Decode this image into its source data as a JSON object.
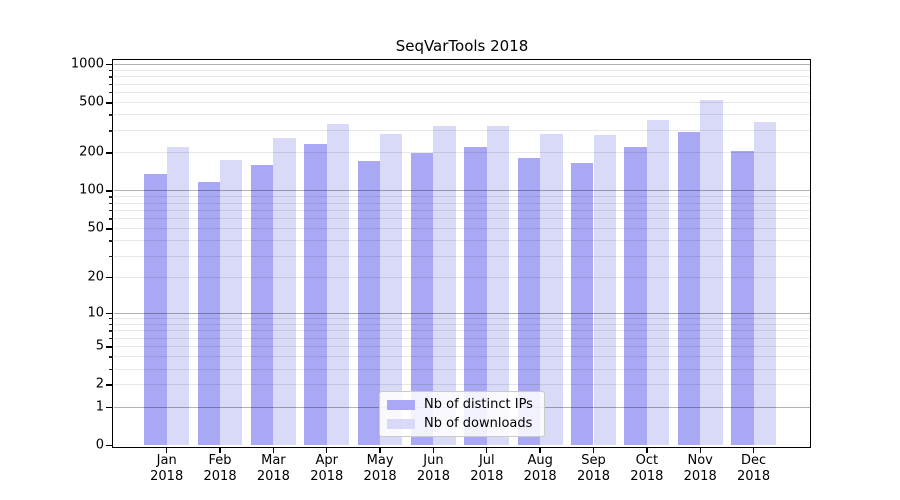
{
  "legend": {
    "items": [
      {
        "label": "Nb of distinct IPs",
        "series": "ips"
      },
      {
        "label": "Nb of downloads",
        "series": "downloads"
      }
    ]
  },
  "colors": {
    "ips_bar": "#a8a8f4",
    "downloads_bar": "#d9d9f8",
    "major_gridline": "#ababab",
    "minor_gridline": "#e8e8e8",
    "axis": "#000000",
    "legend_border": "#cbcbcb"
  },
  "chart_data": {
    "type": "bar",
    "title": "SeqVarTools 2018",
    "categories": [
      "Jan 2018",
      "Feb 2018",
      "Mar 2018",
      "Apr 2018",
      "May 2018",
      "Jun 2018",
      "Jul 2018",
      "Aug 2018",
      "Sep 2018",
      "Oct 2018",
      "Nov 2018",
      "Dec 2018"
    ],
    "series": [
      {
        "name": "Nb of distinct IPs",
        "color_key": "ips_bar",
        "values": [
          134,
          116,
          158,
          233,
          170,
          197,
          220,
          182,
          166,
          221,
          290,
          206
        ]
      },
      {
        "name": "Nb of downloads",
        "color_key": "downloads_bar",
        "values": [
          220,
          175,
          260,
          333,
          280,
          324,
          325,
          281,
          276,
          363,
          520,
          347
        ]
      }
    ],
    "yscale": "log10(1+y)",
    "yticks": [
      0,
      1,
      2,
      5,
      10,
      20,
      50,
      100,
      200,
      500,
      1000
    ],
    "ylim": [
      0,
      1080
    ],
    "xlabel": "",
    "ylabel": "",
    "grid": true,
    "legend_position": "lower center"
  }
}
